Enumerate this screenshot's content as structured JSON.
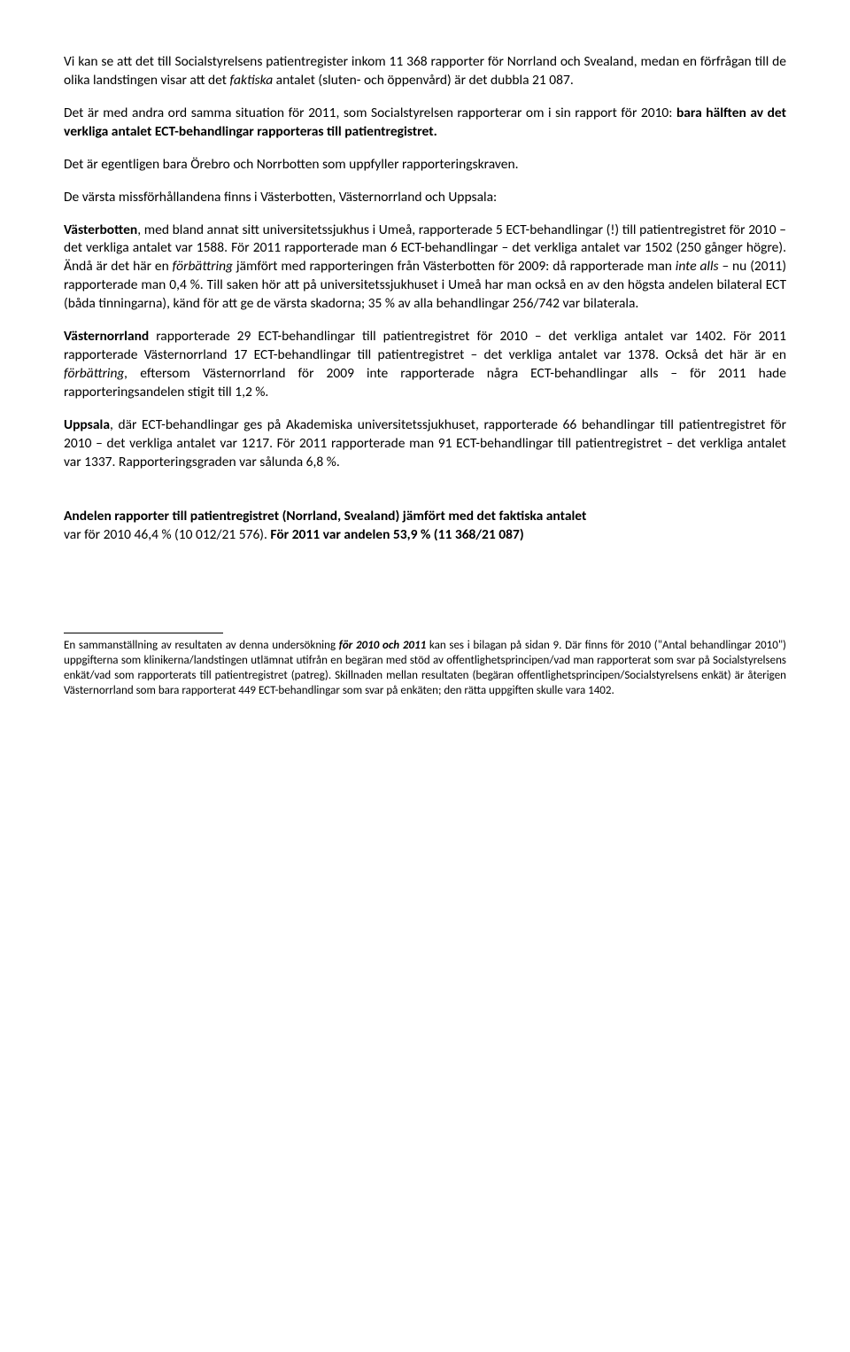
{
  "p1": {
    "pre": "Vi kan se att det till Socialstyrelsens patientregister inkom 11 368 rapporter för Norrland och Svealand, medan en förfrågan till de olika landstingen visar att det ",
    "italic": "faktiska",
    "post": " antalet (sluten- och öppenvård) är det dubbla 21 087."
  },
  "p2": {
    "pre": "Det är med andra ord samma situation för 2011, som Socialstyrelsen rapporterar om i sin rapport för 2010: ",
    "bold": "bara hälften av det verkliga antalet ECT-behandlingar rapporteras till patientregistret."
  },
  "p3": "Det är egentligen bara Örebro och Norrbotten som uppfyller rapporteringskraven.",
  "p4": "De värsta missförhållandena finns i Västerbotten, Västernorrland och Uppsala:",
  "p5": {
    "label": "Västerbotten",
    "seg1": ", med bland annat sitt universitetssjukhus i Umeå, rapporterade 5 ECT-behandlingar (!) till patientregistret för 2010 – det verkliga antalet var 1588. För 2011 rapporterade man 6 ECT-behandlingar – det verkliga antalet var 1502 (250 gånger högre). Ändå är det här en ",
    "italic1": "förbättring",
    "seg2": " jämfört med rapporteringen från Västerbotten för 2009: då rapporterade man ",
    "italic2": "inte alls",
    "seg3": " – nu (2011) rapporterade man 0,4 %. Till saken hör att på universitetssjukhuset i Umeå har man också en av den högsta andelen bilateral ECT (båda tinningarna), känd för att ge de värsta skadorna; 35 % av alla behandlingar 256/742 var bilaterala."
  },
  "p6": {
    "label": "Västernorrland",
    "seg1": " rapporterade 29 ECT-behandlingar till patientregistret för 2010 – det verkliga antalet var 1402. För 2011 rapporterade Västernorrland 17 ECT-behandlingar till patientregistret – det verkliga antalet var 1378. Också det här är en ",
    "italic1": "förbättring,",
    "seg2": " eftersom Västernorrland för 2009 inte rapporterade några ECT-behandlingar alls – för 2011 hade rapporteringsandelen stigit till 1,2 %."
  },
  "p7": {
    "label": "Uppsala",
    "rest": ", där ECT-behandlingar ges på Akademiska universitetssjukhuset, rapporterade 66 behandlingar till patientregistret för 2010 – det verkliga antalet var 1217. För 2011 rapporterade man 91 ECT-behandlingar till patientregistret – det verkliga antalet var 1337. Rapporteringsgraden var sålunda 6,8 %."
  },
  "p8": {
    "line1": "Andelen rapporter till patientregistret (Norrland, Svealand) jämfört med det faktiska antalet",
    "line2_pre": "var för 2010 46,4 % (10 012/21 576). ",
    "line2_bold": "För 2011 var andelen 53,9 % (11 368/21 087)"
  },
  "footnote": {
    "pre": "En sammanställning av resultaten av denna undersökning ",
    "italic": "för 2010 och 2011",
    "rest": " kan ses i bilagan på sidan 9. Där finns för 2010 (\"Antal behandlingar 2010\") uppgifterna som klinikerna/landstingen utlämnat utifrån en begäran med stöd av offentlighetsprincipen/vad man rapporterat som svar på Socialstyrelsens enkät/vad som rapporterats till patientregistret (patreg). Skillnaden mellan resultaten (begäran offentlighetsprincipen/Socialstyrelsens enkät) är återigen Västernorrland som bara rapporterat 449 ECT-behandlingar som svar på enkäten; den rätta uppgiften skulle vara 1402."
  }
}
